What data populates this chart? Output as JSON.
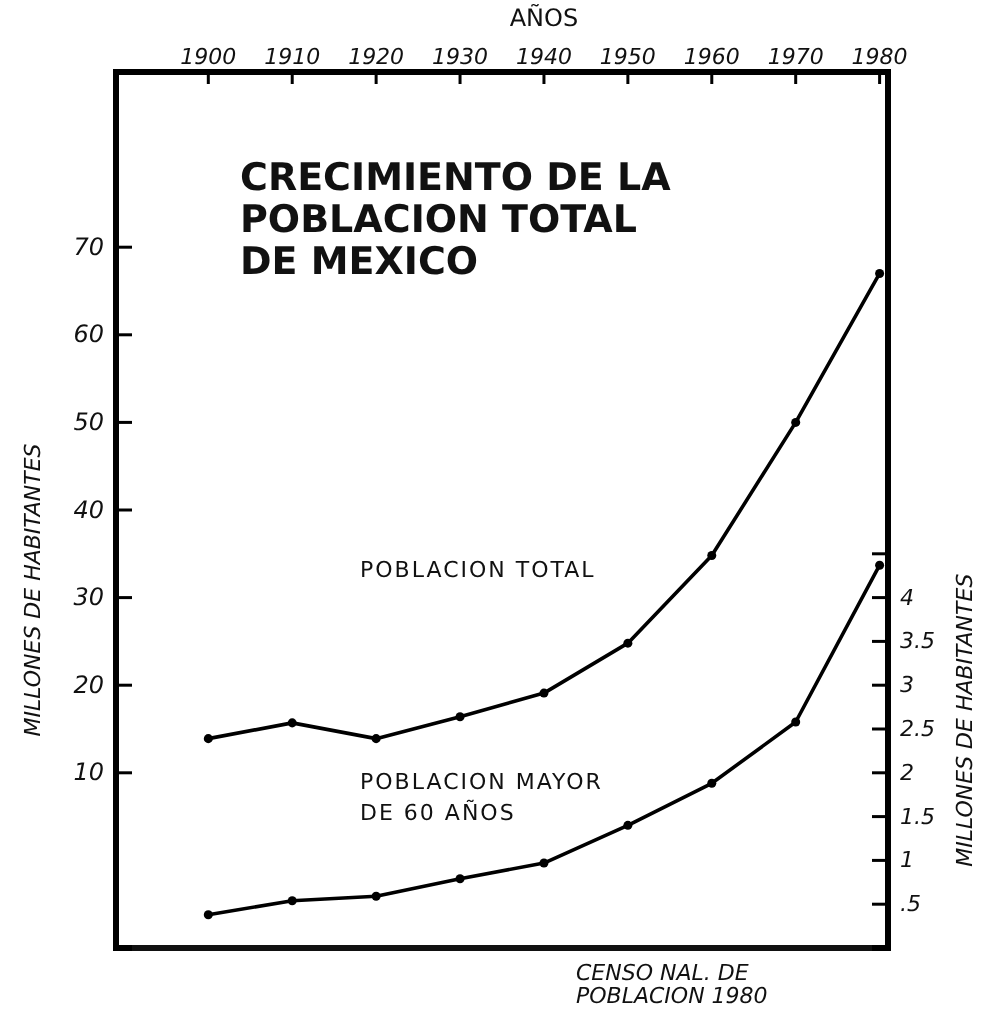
{
  "chart_data": {
    "type": "line",
    "title": "CRECIMIENTO DE LA POBLACION TOTAL DE MEXICO",
    "xlabel": "AÑOS",
    "ylabel": "MILLONES DE HABITANTES",
    "y2label": "MILLONES DE HABITANTES",
    "x": [
      1900,
      1910,
      1920,
      1930,
      1940,
      1950,
      1960,
      1970,
      1980
    ],
    "series": [
      {
        "name": "POBLACION TOTAL",
        "color": "#000000",
        "values": [
          13.9,
          15.7,
          13.9,
          16.4,
          19.1,
          24.8,
          34.8,
          50,
          67
        ]
      },
      {
        "name": "POBLACION MAYOR DE 60 AÑOS",
        "color": "#000000",
        "axis": "y2",
        "values": [
          0.38,
          0.54,
          0.59,
          0.79,
          0.97,
          1.4,
          1.88,
          2.58,
          4.37
        ]
      }
    ],
    "xlim": [
      1889,
      1981
    ],
    "xticks": [
      1900,
      1910,
      1920,
      1930,
      1940,
      1950,
      1960,
      1970,
      1980
    ],
    "ylim": [
      -10,
      90
    ],
    "yticks": [
      10,
      20,
      30,
      40,
      50,
      60,
      70
    ],
    "y2lim": [
      0,
      10
    ],
    "y2ticks": [
      {
        "value": 0.5,
        "label": ".5"
      },
      1,
      1.5,
      2,
      2.5,
      3,
      3.5,
      4,
      {
        "value": 4.5,
        "label": null
      }
    ],
    "annotations": [
      "CENSO NAL. DE POBLACION 1980"
    ],
    "legend": false,
    "marker": "circle",
    "line_style": "solid"
  }
}
